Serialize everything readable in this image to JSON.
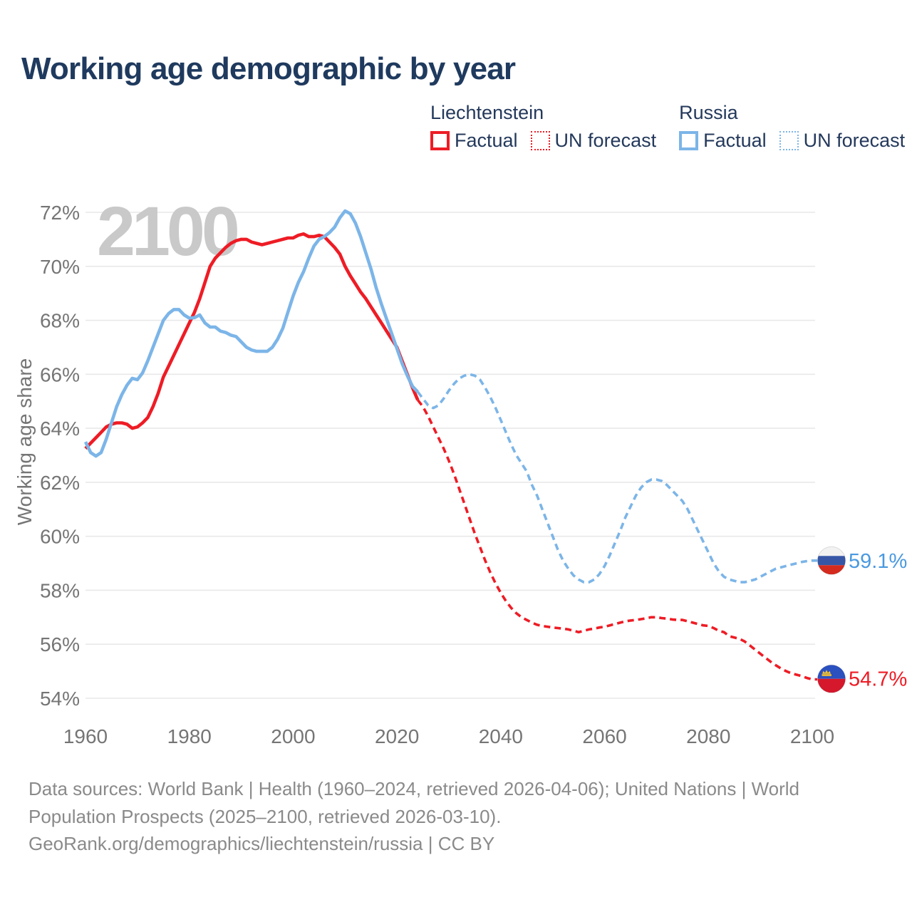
{
  "header": {
    "title": "Working age demographic by year"
  },
  "legend": {
    "groups": [
      {
        "country": "Liechtenstein",
        "color": "#ee1c25",
        "items": [
          {
            "label": "Factual",
            "style": "solid"
          },
          {
            "label": "UN forecast",
            "style": "dashed"
          }
        ]
      },
      {
        "country": "Russia",
        "color": "#7cb5e8",
        "items": [
          {
            "label": "Factual",
            "style": "solid"
          },
          {
            "label": "UN forecast",
            "style": "dashed"
          }
        ]
      }
    ]
  },
  "chart_data": {
    "type": "line",
    "title": "Working age demographic by year",
    "ylabel": "Working age share",
    "watermark": "2100",
    "x_axis": {
      "range": [
        1960,
        2100
      ],
      "ticks": [
        1960,
        1980,
        2000,
        2020,
        2040,
        2060,
        2080,
        2100
      ]
    },
    "y_axis": {
      "range": [
        54,
        72
      ],
      "ticks": [
        72,
        70,
        68,
        66,
        64,
        62,
        60,
        58,
        56,
        54
      ],
      "tick_suffix": "%",
      "grid": true
    },
    "series": [
      {
        "id": "liechtenstein_factual",
        "country": "Liechtenstein",
        "kind": "Factual",
        "color": "#ee1c25",
        "line_style": "solid",
        "start_year": 1960,
        "values": [
          63.25,
          63.45,
          63.65,
          63.85,
          64.05,
          64.15,
          64.2,
          64.2,
          64.15,
          64.0,
          64.05,
          64.2,
          64.4,
          64.8,
          65.3,
          65.9,
          66.3,
          66.7,
          67.1,
          67.5,
          67.9,
          68.3,
          68.8,
          69.4,
          70.0,
          70.3,
          70.5,
          70.7,
          70.85,
          70.95,
          71.0,
          71.0,
          70.9,
          70.85,
          70.8,
          70.85,
          70.9,
          70.95,
          71.0,
          71.05,
          71.05,
          71.15,
          71.2,
          71.1,
          71.1,
          71.15,
          71.1,
          70.9,
          70.7,
          70.45,
          70.0,
          69.65,
          69.35,
          69.05,
          68.8,
          68.5,
          68.2,
          67.9,
          67.6,
          67.3,
          67.0,
          66.5,
          66.0,
          65.5,
          65.05
        ]
      },
      {
        "id": "liechtenstein_forecast",
        "country": "Liechtenstein",
        "kind": "UN forecast",
        "color": "#ee1c25",
        "line_style": "dashed",
        "start_year": 2024,
        "values": [
          65.05,
          64.8,
          64.45,
          64.05,
          63.65,
          63.25,
          62.8,
          62.3,
          61.75,
          61.2,
          60.65,
          60.1,
          59.6,
          59.1,
          58.65,
          58.25,
          57.9,
          57.6,
          57.35,
          57.15,
          57.0,
          56.9,
          56.8,
          56.72,
          56.68,
          56.65,
          56.62,
          56.6,
          56.58,
          56.55,
          56.5,
          56.45,
          56.5,
          56.55,
          56.58,
          56.62,
          56.65,
          56.7,
          56.75,
          56.8,
          56.85,
          56.88,
          56.9,
          56.93,
          56.96,
          57.0,
          57.0,
          56.97,
          56.95,
          56.92,
          56.9,
          56.9,
          56.85,
          56.8,
          56.75,
          56.7,
          56.68,
          56.6,
          56.5,
          56.45,
          56.3,
          56.25,
          56.2,
          56.1,
          55.95,
          55.8,
          55.65,
          55.5,
          55.35,
          55.22,
          55.1,
          55.0,
          54.92,
          54.87,
          54.82,
          54.75,
          54.7
        ]
      },
      {
        "id": "russia_factual",
        "country": "Russia",
        "kind": "Factual",
        "color": "#7cb5e8",
        "line_style": "solid",
        "start_year": 1960,
        "values": [
          63.5,
          63.1,
          62.97,
          63.1,
          63.6,
          64.2,
          64.8,
          65.25,
          65.6,
          65.85,
          65.8,
          66.05,
          66.5,
          67.0,
          67.5,
          68.0,
          68.25,
          68.4,
          68.4,
          68.2,
          68.08,
          68.1,
          68.2,
          67.9,
          67.75,
          67.75,
          67.6,
          67.55,
          67.45,
          67.4,
          67.2,
          67.0,
          66.9,
          66.85,
          66.85,
          66.85,
          67.0,
          67.3,
          67.7,
          68.3,
          68.9,
          69.4,
          69.8,
          70.3,
          70.75,
          71.0,
          71.1,
          71.25,
          71.45,
          71.8,
          72.05,
          71.95,
          71.6,
          71.1,
          70.5,
          69.9,
          69.2,
          68.6,
          68.05,
          67.5,
          66.95,
          66.4,
          65.95,
          65.55,
          65.35
        ]
      },
      {
        "id": "russia_forecast",
        "country": "Russia",
        "kind": "UN forecast",
        "color": "#7cb5e8",
        "line_style": "dashed",
        "start_year": 2024,
        "values": [
          65.35,
          65.1,
          64.85,
          64.75,
          64.85,
          65.1,
          65.4,
          65.65,
          65.85,
          65.95,
          66.0,
          65.95,
          65.8,
          65.5,
          65.15,
          64.75,
          64.3,
          63.85,
          63.4,
          63.0,
          62.7,
          62.4,
          61.9,
          61.5,
          61.0,
          60.5,
          60.0,
          59.5,
          59.1,
          58.8,
          58.55,
          58.4,
          58.3,
          58.3,
          58.4,
          58.6,
          58.9,
          59.3,
          59.75,
          60.2,
          60.7,
          61.1,
          61.5,
          61.8,
          62.0,
          62.1,
          62.1,
          62.05,
          61.9,
          61.7,
          61.5,
          61.3,
          61.0,
          60.6,
          60.2,
          59.8,
          59.4,
          59.0,
          58.7,
          58.5,
          58.4,
          58.35,
          58.3,
          58.3,
          58.35,
          58.4,
          58.5,
          58.6,
          58.7,
          58.8,
          58.85,
          58.9,
          58.95,
          59.0,
          59.05,
          59.08,
          59.1
        ]
      }
    ],
    "end_labels": [
      {
        "country": "Russia",
        "label": "59.1%",
        "value": 59.1,
        "flag": "russia",
        "color": "#4a99e0"
      },
      {
        "country": "Liechtenstein",
        "label": "54.7%",
        "value": 54.72,
        "flag": "liechtenstein",
        "color": "#ee1c25"
      }
    ]
  },
  "footer": {
    "lines": [
      "Data sources: World Bank | Health (1960–2024, retrieved 2026-04-06); United Nations | World",
      "Population Prospects (2025–2100, retrieved 2026-03-10).",
      "GeoRank.org/demographics/liechtenstein/russia | CC BY"
    ]
  }
}
